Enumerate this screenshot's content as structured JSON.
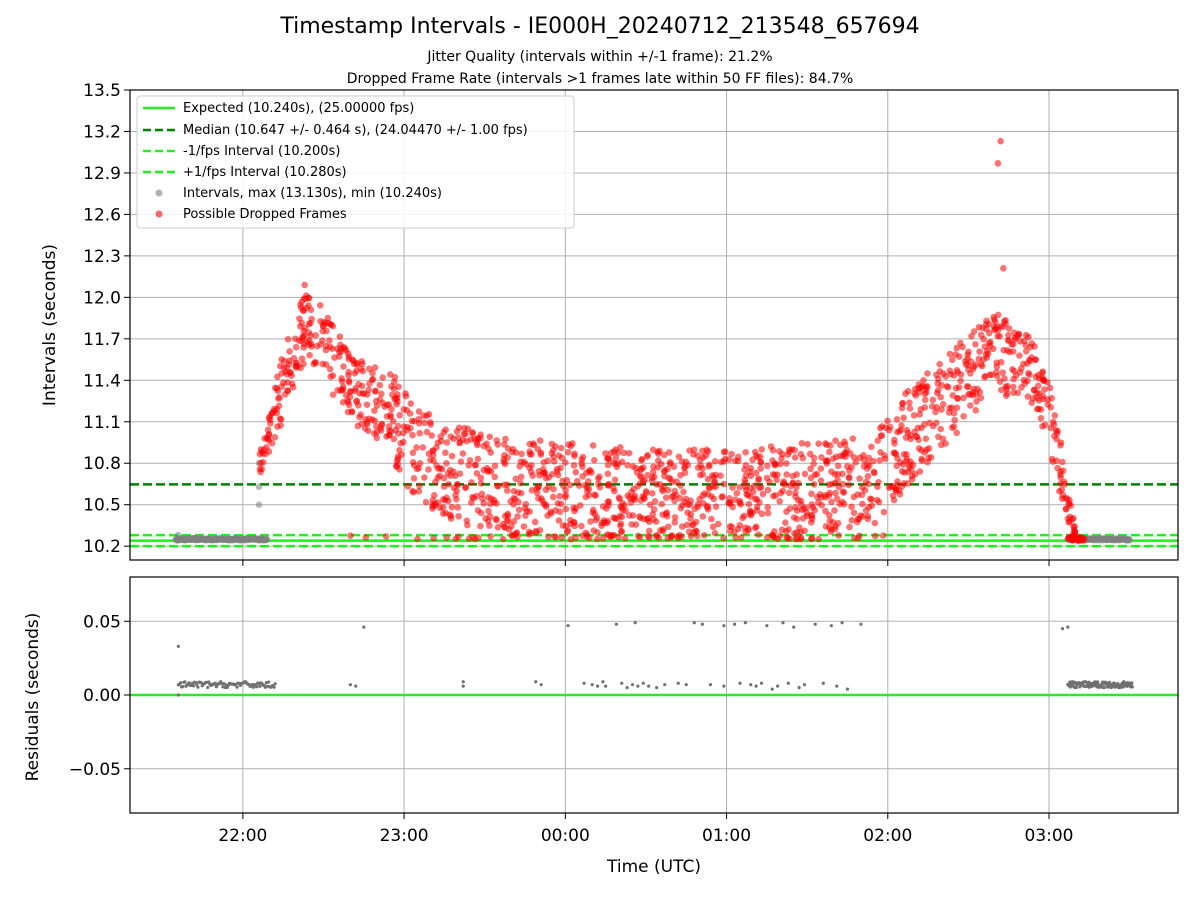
{
  "chart_data": [
    {
      "type": "scatter",
      "title": "Timestamp Intervals - IE000H_20240712_213548_657694",
      "subtitle_lines": [
        "Jitter Quality (intervals within +/-1 frame): 21.2%",
        "Dropped Frame Rate (intervals >1 frames late within 50 FF files): 84.7%"
      ],
      "ylabel": "Intervals (seconds)",
      "ylim": [
        10.1,
        13.5
      ],
      "yticks": [
        "10.2",
        "10.5",
        "10.8",
        "11.1",
        "11.4",
        "11.7",
        "12.0",
        "12.3",
        "12.6",
        "12.9",
        "13.2",
        "13.5"
      ],
      "x_unit": "UTC time, 2024-07-12 21:18 to 2024-07-13 03:48",
      "xlim": [
        "21:18",
        "03:48"
      ],
      "grid": true,
      "legend_position": "upper-left",
      "legend": [
        "Expected (10.240s), (25.00000 fps)",
        "Median (10.647 +/- 0.464 s), (24.04470 +/- 1.00 fps)",
        "-1/fps Interval (10.200s)",
        "+1/fps Interval (10.280s)",
        "Intervals, max (13.130s), min (10.240s)",
        "Possible Dropped Frames"
      ],
      "reference_lines": [
        {
          "value": 10.24,
          "style": "solid",
          "color": "#22ee22"
        },
        {
          "value": 10.647,
          "style": "dashed",
          "color": "#008000"
        },
        {
          "value": 10.2,
          "style": "dashed",
          "color": "#22ee22"
        },
        {
          "value": 10.28,
          "style": "dashed",
          "color": "#22ee22"
        }
      ],
      "series": [
        {
          "name": "Intervals, max (13.130s), min (10.240s)",
          "color": "#808080",
          "description": "Normal intervals near 10.24 s",
          "segments": [
            {
              "x_from": "21:35",
              "x_to": "22:09",
              "y": 10.25,
              "count": 170
            },
            {
              "x_from": "03:07",
              "x_to": "03:30",
              "y": 10.25,
              "count": 100
            }
          ],
          "extra_points": [
            {
              "x": "22:06",
              "y": 10.5
            },
            {
              "x": "22:06",
              "y": 10.63
            },
            {
              "x": "22:06",
              "y": 10.8
            },
            {
              "x": "21:36",
              "y": 10.28
            }
          ]
        },
        {
          "name": "Possible Dropped Frames",
          "color": "#ff0000",
          "description": "Elevated intervals forming a U-shaped envelope",
          "envelope": [
            {
              "x": "22:06",
              "lo": 10.7,
              "hi": 10.9
            },
            {
              "x": "22:15",
              "lo": 11.1,
              "hi": 11.6
            },
            {
              "x": "22:22",
              "lo": 11.5,
              "hi": 12.05
            },
            {
              "x": "22:30",
              "lo": 11.4,
              "hi": 11.95
            },
            {
              "x": "22:40",
              "lo": 11.1,
              "hi": 11.6
            },
            {
              "x": "22:52",
              "lo": 10.95,
              "hi": 11.55
            },
            {
              "x": "23:05",
              "lo": 10.5,
              "hi": 11.2
            },
            {
              "x": "23:30",
              "lo": 10.3,
              "hi": 11.0
            },
            {
              "x": "00:00",
              "lo": 10.25,
              "hi": 10.95
            },
            {
              "x": "00:30",
              "lo": 10.25,
              "hi": 10.9
            },
            {
              "x": "01:00",
              "lo": 10.25,
              "hi": 10.9
            },
            {
              "x": "01:30",
              "lo": 10.25,
              "hi": 10.95
            },
            {
              "x": "01:55",
              "lo": 10.35,
              "hi": 11.0
            },
            {
              "x": "02:10",
              "lo": 10.7,
              "hi": 11.4
            },
            {
              "x": "02:25",
              "lo": 11.0,
              "hi": 11.65
            },
            {
              "x": "02:40",
              "lo": 11.3,
              "hi": 11.9
            },
            {
              "x": "02:55",
              "lo": 11.2,
              "hi": 11.7
            },
            {
              "x": "03:00",
              "lo": 10.9,
              "hi": 11.4
            },
            {
              "x": "03:05",
              "lo": 10.5,
              "hi": 10.9
            },
            {
              "x": "03:10",
              "lo": 10.24,
              "hi": 10.3
            }
          ],
          "outliers": [
            {
              "x": "02:42",
              "y": 13.13
            },
            {
              "x": "02:41",
              "y": 12.97
            },
            {
              "x": "02:43",
              "y": 12.21
            },
            {
              "x": "22:23",
              "y": 12.09
            }
          ]
        }
      ]
    },
    {
      "type": "scatter",
      "xlabel": "Time (UTC)",
      "ylabel": "Residuals (seconds)",
      "ylim": [
        -0.08,
        0.08
      ],
      "yticks": [
        "−0.05",
        "0.00",
        "0.05"
      ],
      "xticks": [
        "22:00",
        "23:00",
        "00:00",
        "01:00",
        "02:00",
        "03:00"
      ],
      "xlim": [
        "21:18",
        "03:48"
      ],
      "grid": true,
      "reference_lines": [
        {
          "value": 0.0,
          "style": "solid",
          "color": "#22ee22"
        }
      ],
      "series": [
        {
          "color": "#707070",
          "segments": [
            {
              "x_from": "21:36",
              "x_to": "22:12",
              "y": 0.007,
              "count": 90
            },
            {
              "x_from": "03:07",
              "x_to": "03:31",
              "y": 0.007,
              "count": 130
            }
          ],
          "points": [
            {
              "x": "21:36",
              "y": 0.033
            },
            {
              "x": "21:36",
              "y": 0.0
            },
            {
              "x": "22:40",
              "y": 0.007
            },
            {
              "x": "22:42",
              "y": 0.006
            },
            {
              "x": "22:45",
              "y": 0.046
            },
            {
              "x": "23:22",
              "y": 0.006
            },
            {
              "x": "23:22",
              "y": 0.009
            },
            {
              "x": "23:49",
              "y": 0.009
            },
            {
              "x": "23:51",
              "y": 0.007
            },
            {
              "x": "00:01",
              "y": 0.047
            },
            {
              "x": "00:07",
              "y": 0.008
            },
            {
              "x": "00:10",
              "y": 0.007
            },
            {
              "x": "00:12",
              "y": 0.006
            },
            {
              "x": "00:14",
              "y": 0.009
            },
            {
              "x": "00:15",
              "y": 0.006
            },
            {
              "x": "00:19",
              "y": 0.048
            },
            {
              "x": "00:21",
              "y": 0.008
            },
            {
              "x": "00:23",
              "y": 0.005
            },
            {
              "x": "00:25",
              "y": 0.007
            },
            {
              "x": "00:26",
              "y": 0.049
            },
            {
              "x": "00:27",
              "y": 0.006
            },
            {
              "x": "00:29",
              "y": 0.008
            },
            {
              "x": "00:31",
              "y": 0.006
            },
            {
              "x": "00:34",
              "y": 0.005
            },
            {
              "x": "00:37",
              "y": 0.007
            },
            {
              "x": "00:42",
              "y": 0.008
            },
            {
              "x": "00:45",
              "y": 0.007
            },
            {
              "x": "00:48",
              "y": 0.049
            },
            {
              "x": "00:51",
              "y": 0.048
            },
            {
              "x": "00:54",
              "y": 0.007
            },
            {
              "x": "00:59",
              "y": 0.047
            },
            {
              "x": "00:59",
              "y": 0.006
            },
            {
              "x": "01:03",
              "y": 0.048
            },
            {
              "x": "01:05",
              "y": 0.008
            },
            {
              "x": "01:07",
              "y": 0.049
            },
            {
              "x": "01:09",
              "y": 0.007
            },
            {
              "x": "01:11",
              "y": 0.006
            },
            {
              "x": "01:13",
              "y": 0.008
            },
            {
              "x": "01:15",
              "y": 0.047
            },
            {
              "x": "01:17",
              "y": 0.004
            },
            {
              "x": "01:19",
              "y": 0.006
            },
            {
              "x": "01:21",
              "y": 0.049
            },
            {
              "x": "01:23",
              "y": 0.008
            },
            {
              "x": "01:25",
              "y": 0.046
            },
            {
              "x": "01:27",
              "y": 0.005
            },
            {
              "x": "01:29",
              "y": 0.007
            },
            {
              "x": "01:33",
              "y": 0.048
            },
            {
              "x": "01:36",
              "y": 0.008
            },
            {
              "x": "01:39",
              "y": 0.047
            },
            {
              "x": "01:41",
              "y": 0.006
            },
            {
              "x": "01:43",
              "y": 0.049
            },
            {
              "x": "01:45",
              "y": 0.004
            },
            {
              "x": "01:50",
              "y": 0.048
            },
            {
              "x": "03:05",
              "y": 0.045
            },
            {
              "x": "03:07",
              "y": 0.046
            }
          ]
        }
      ]
    }
  ]
}
